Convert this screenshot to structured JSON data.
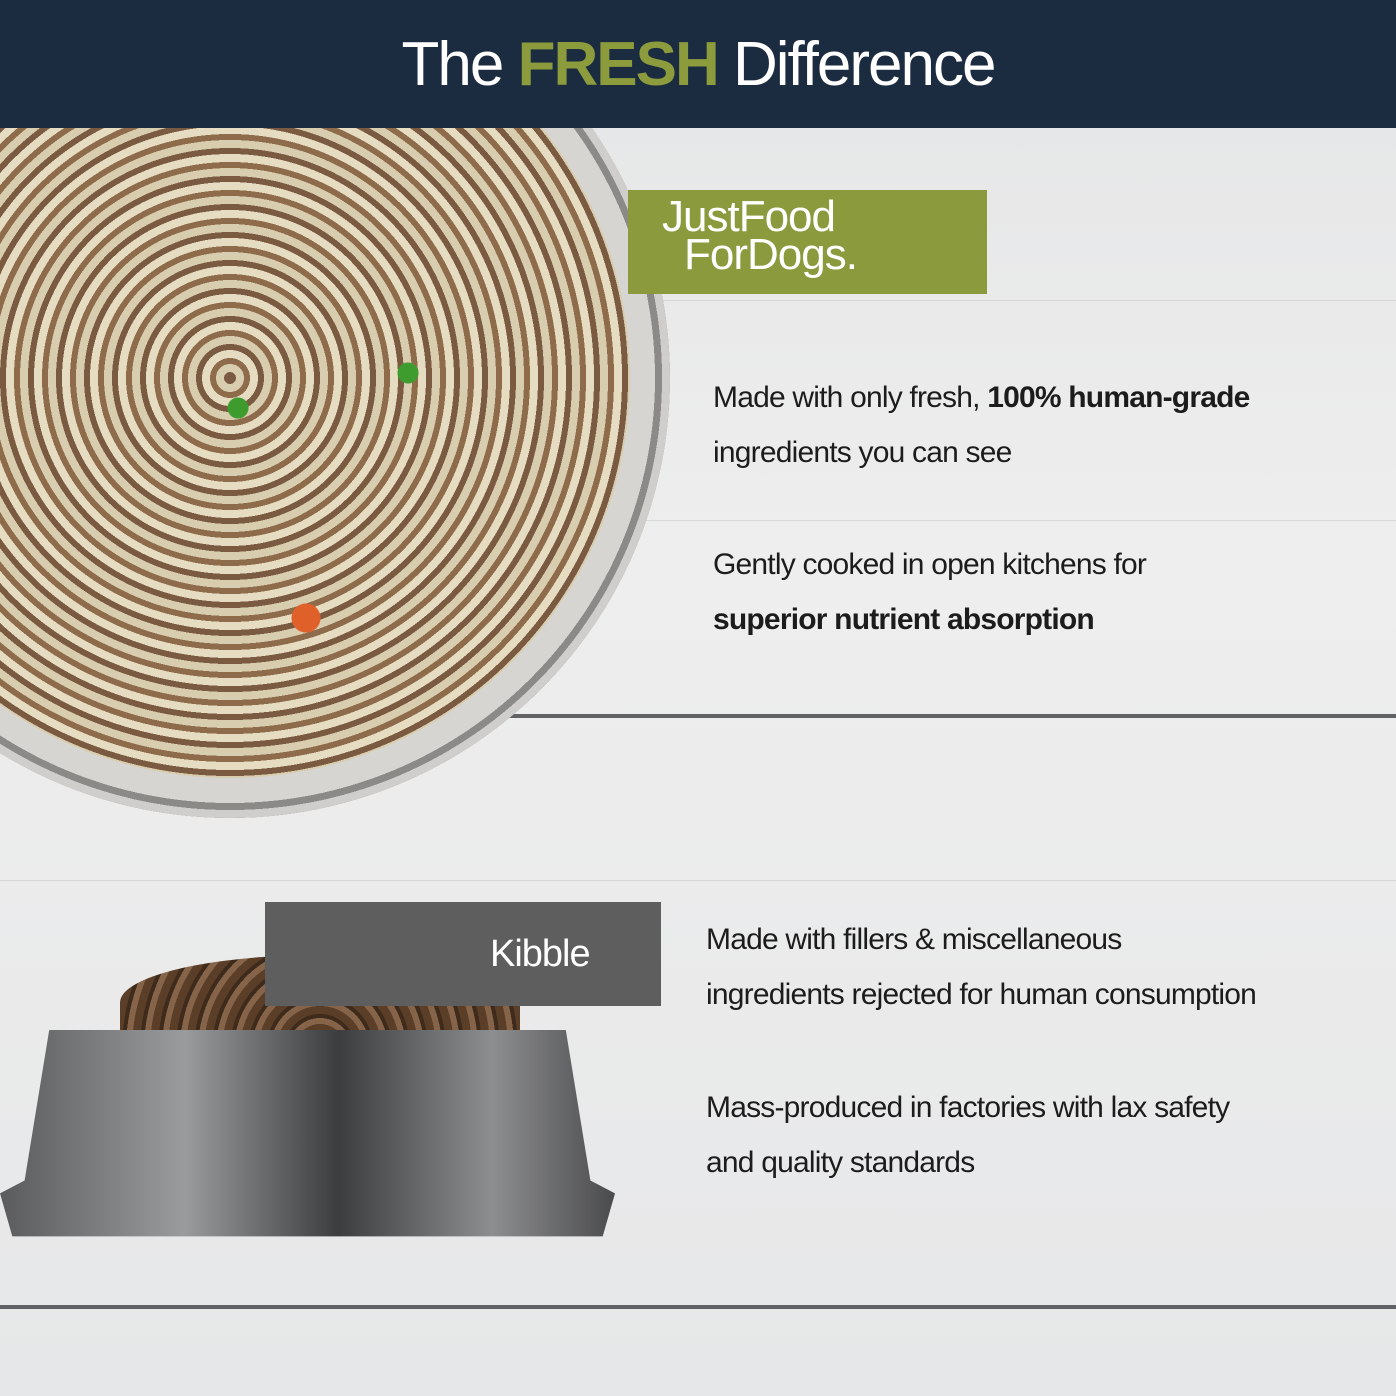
{
  "header": {
    "title_pre": "The",
    "title_accent": "FRESH",
    "title_post": "Difference"
  },
  "logo": {
    "line1": "JustFood",
    "line2": "ForDogs."
  },
  "fresh": {
    "p1": {
      "a": "Made with only fresh, ",
      "b": "100% human-grade",
      "c": "ingredients you can see"
    },
    "p2": {
      "a": "Gently cooked in open kitchens for",
      "b": "superior nutrient absorption"
    }
  },
  "kibble": {
    "label": "Kibble",
    "p1": {
      "a": "Made with fillers & miscellaneous",
      "b": "ingredients rejected for human consumption"
    },
    "p2": {
      "a": "Mass-produced in factories with lax safety",
      "b": "and quality standards"
    }
  },
  "colors": {
    "header": "#1b2b40",
    "accent": "#8c9c3c",
    "kibble_label": "#5e5e5e"
  }
}
